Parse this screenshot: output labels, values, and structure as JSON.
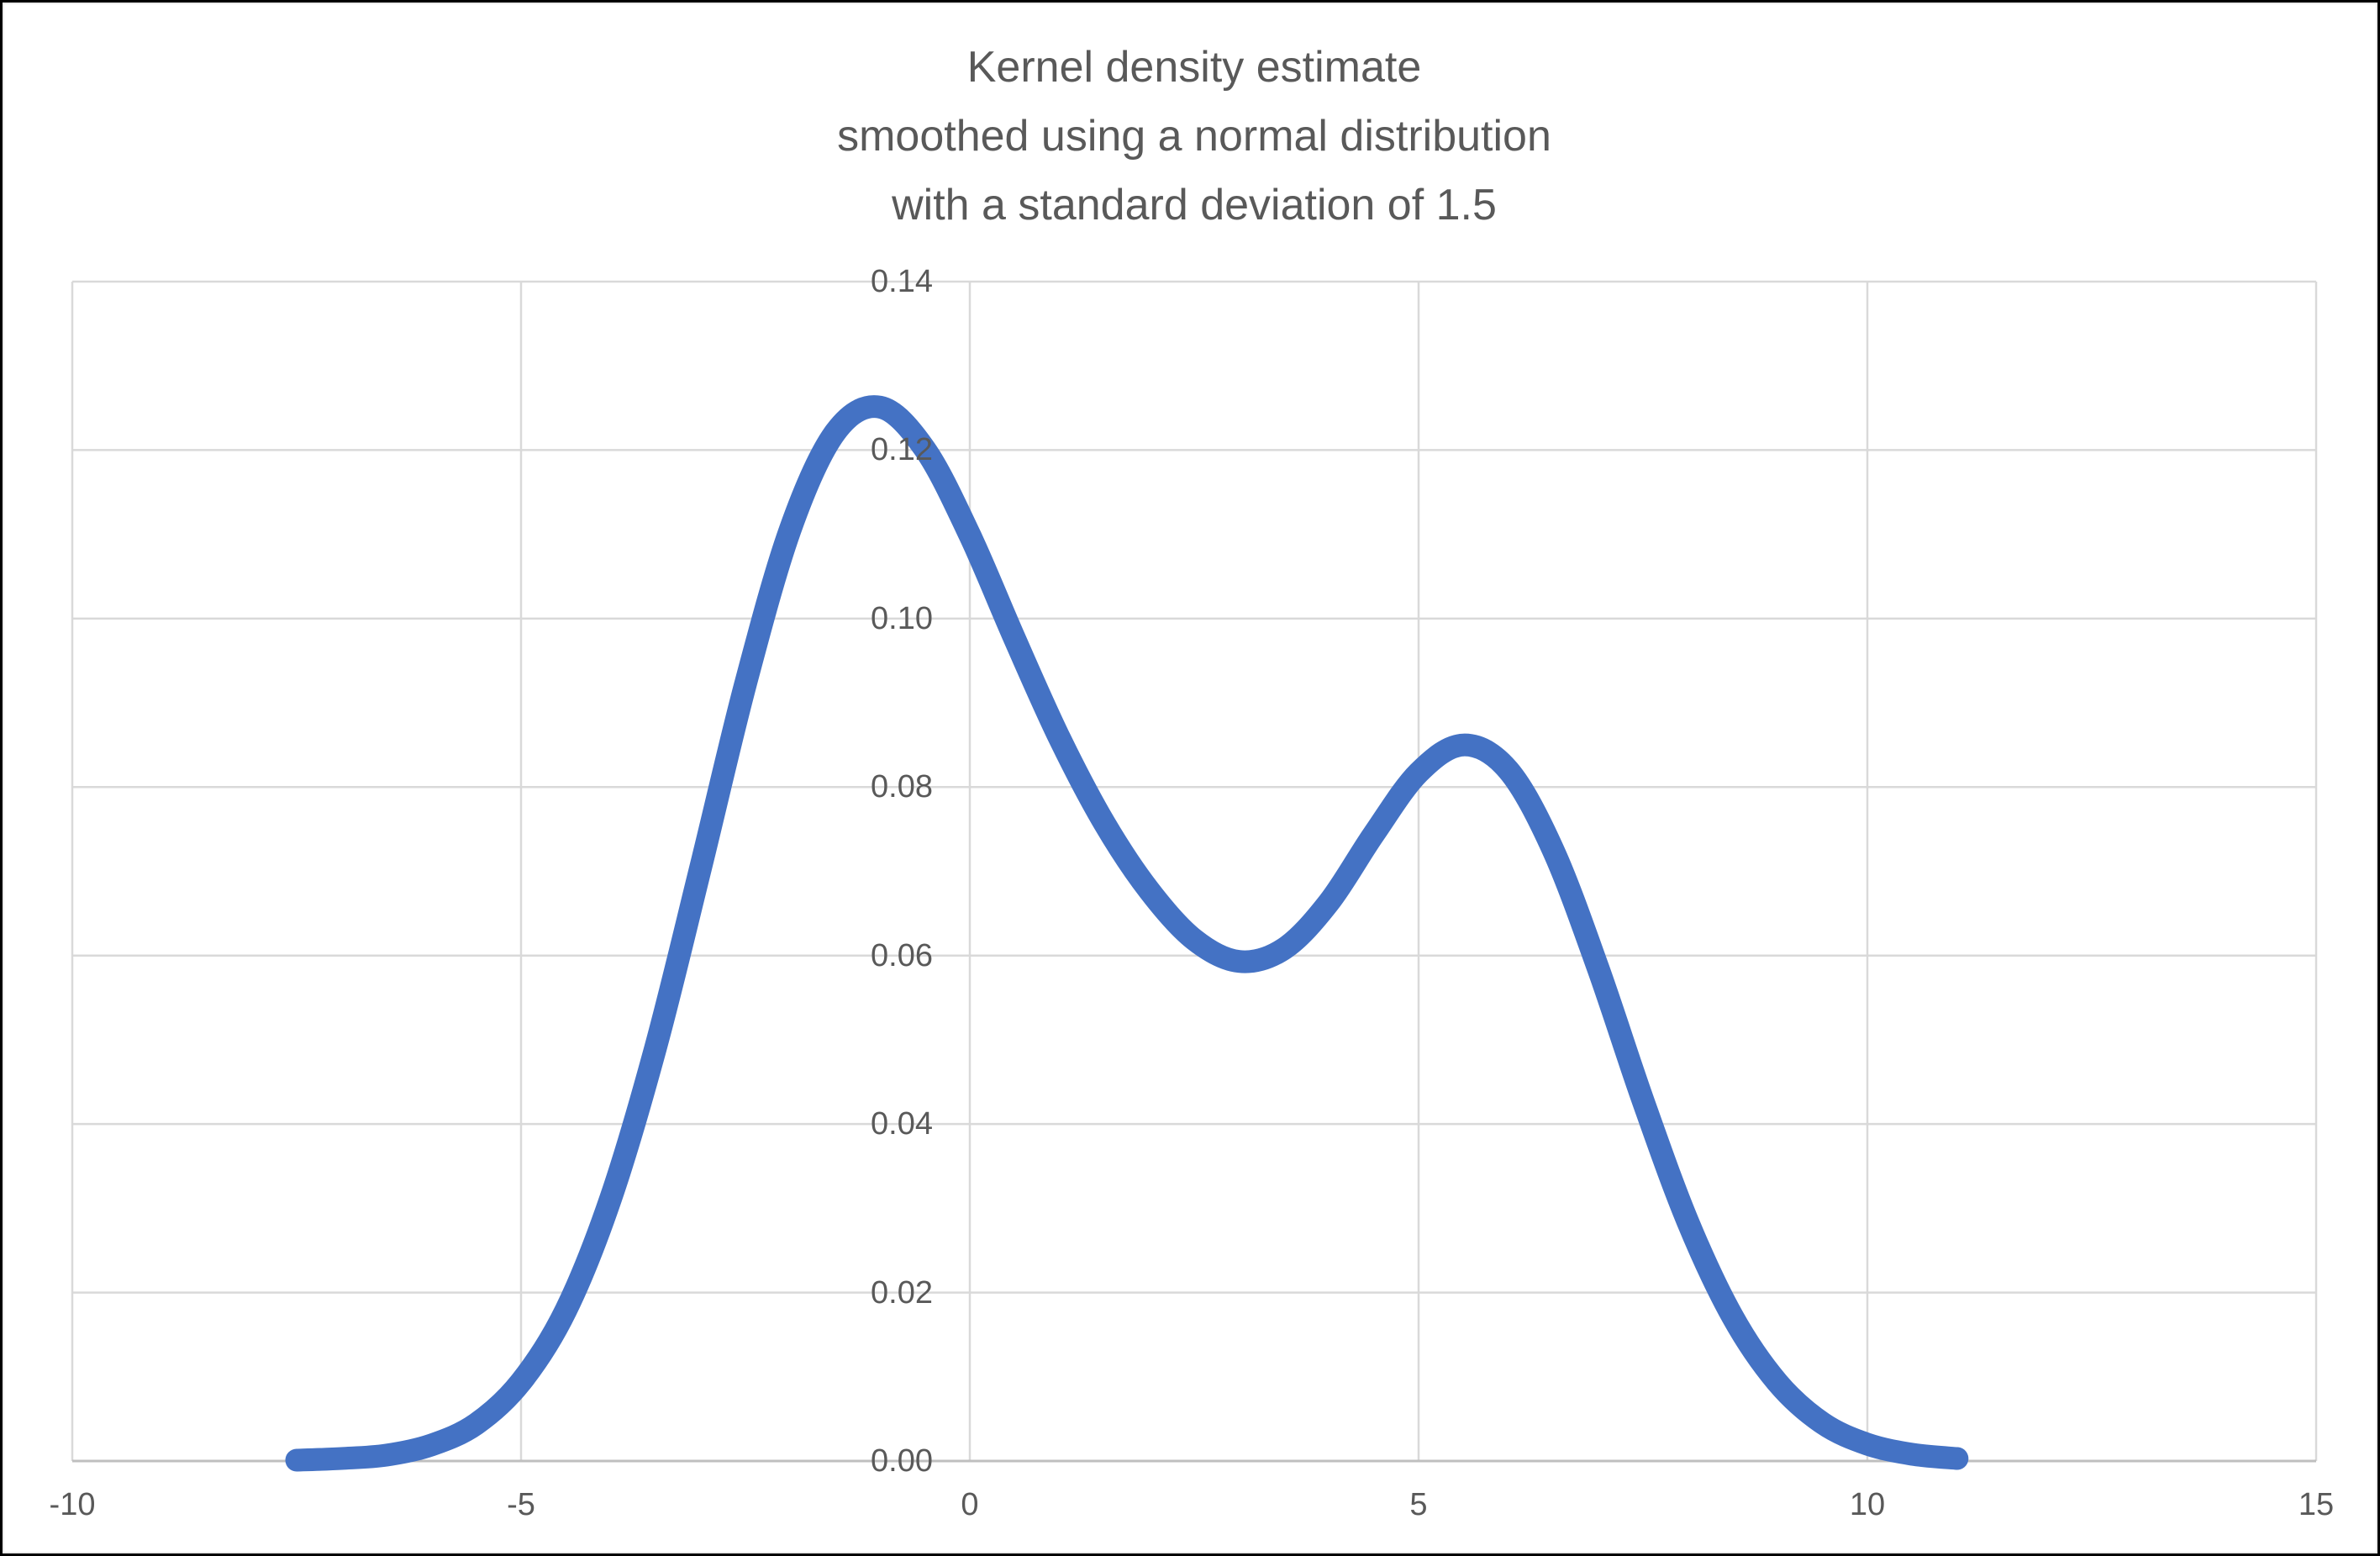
{
  "chart": {
    "title_lines": [
      "Kernel density estimate",
      "smoothed using a normal distribution",
      "with a standard deviation of 1.5"
    ]
  },
  "style": {
    "background": "#FFFFFF",
    "frame_border": "#000000",
    "title_color": "#595959",
    "tick_label_color": "#595959",
    "gridline_color": "#D9D9D9",
    "axis_line_color": "#BFBFBF",
    "series_color": "#4472C4"
  },
  "chart_data": {
    "type": "line",
    "title": "Kernel density estimate smoothed using a normal distribution with a standard deviation of 1.5",
    "xlabel": "",
    "ylabel": "",
    "xlim": [
      -10,
      15
    ],
    "ylim": [
      0,
      0.14
    ],
    "x_ticks": [
      -10,
      -5,
      0,
      5,
      10,
      15
    ],
    "x_tick_labels": [
      "-10",
      "-5",
      "0",
      "5",
      "10",
      "15"
    ],
    "y_ticks": [
      0,
      0.02,
      0.04,
      0.06,
      0.08,
      0.1,
      0.12,
      0.14
    ],
    "y_tick_labels": [
      "0.00",
      "0.02",
      "0.04",
      "0.06",
      "0.08",
      "0.10",
      "0.12",
      "0.14"
    ],
    "grid": true,
    "legend_position": "none",
    "series": [
      {
        "name": "kernel-density-estimate",
        "color": "#4472C4",
        "smoothed": true,
        "points": [
          [
            -7.5,
            0.0001
          ],
          [
            -7.0,
            0.0003
          ],
          [
            -6.5,
            0.0007
          ],
          [
            -6.0,
            0.0019
          ],
          [
            -5.5,
            0.0044
          ],
          [
            -5.0,
            0.0094
          ],
          [
            -4.5,
            0.0179
          ],
          [
            -4.0,
            0.0312
          ],
          [
            -3.5,
            0.0491
          ],
          [
            -3.0,
            0.0704
          ],
          [
            -2.5,
            0.0922
          ],
          [
            -2.0,
            0.1106
          ],
          [
            -1.5,
            0.1221
          ],
          [
            -1.0,
            0.1251
          ],
          [
            -0.5,
            0.1201
          ],
          [
            0.0,
            0.1099
          ],
          [
            0.5,
            0.0976
          ],
          [
            1.0,
            0.0858
          ],
          [
            1.5,
            0.0757
          ],
          [
            2.0,
            0.0677
          ],
          [
            2.5,
            0.0619
          ],
          [
            3.0,
            0.0593
          ],
          [
            3.5,
            0.0608
          ],
          [
            4.0,
            0.0663
          ],
          [
            4.5,
            0.0744
          ],
          [
            5.0,
            0.0817
          ],
          [
            5.5,
            0.085
          ],
          [
            6.0,
            0.082
          ],
          [
            6.5,
            0.0725
          ],
          [
            7.0,
            0.0585
          ],
          [
            7.5,
            0.0428
          ],
          [
            8.0,
            0.0284
          ],
          [
            8.5,
            0.0171
          ],
          [
            9.0,
            0.0093
          ],
          [
            9.5,
            0.0045
          ],
          [
            10.0,
            0.002
          ],
          [
            10.5,
            0.0008
          ],
          [
            11.0,
            0.0003
          ]
        ]
      }
    ]
  }
}
